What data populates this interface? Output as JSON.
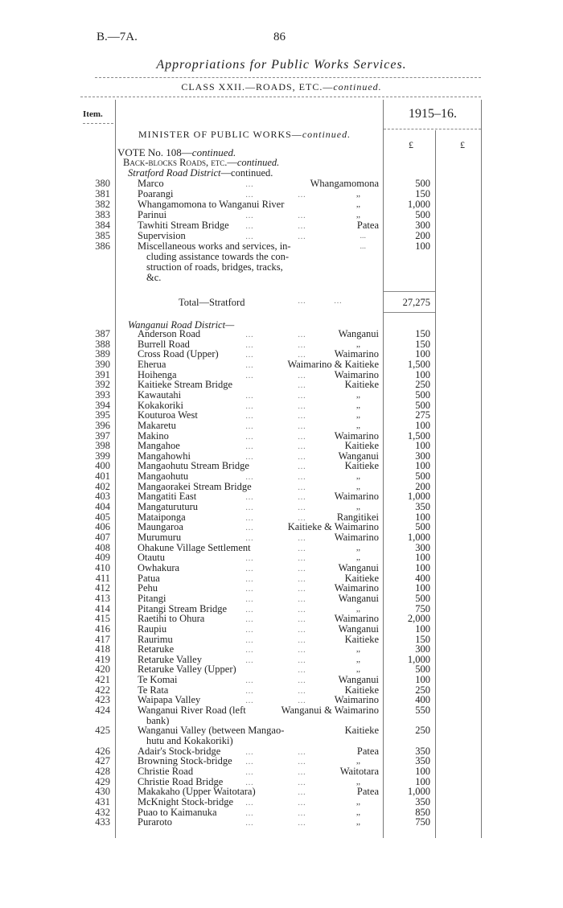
{
  "header": {
    "ref": "B.—7A.",
    "page_number": "86",
    "title": "Appropriations for Public Works Services.",
    "class_line": "CLASS XXII.—ROADS, ETC.—",
    "class_line_cont": "continued."
  },
  "table": {
    "item_header": "Item.",
    "year_header": "1915–16.",
    "currency_1": "£",
    "currency_2": "£",
    "minister": "MINISTER OF PUBLIC WORKS—",
    "minister_cont": "continued.",
    "vote": "VOTE No. 108—",
    "vote_cont": "continued.",
    "backblocks": "Back-blocks Roads, etc.—",
    "backblocks_cont": "continued.",
    "stratford_heading": "Stratford Road District",
    "stratford_cont": "—continued.",
    "stratford_rows": [
      {
        "item": "380",
        "name": [
          "Marco"
        ],
        "district": "Whangamomona",
        "amount": "500"
      },
      {
        "item": "381",
        "name": [
          "Poarangi"
        ],
        "district": ",,",
        "amount": "150"
      },
      {
        "item": "382",
        "name": [
          "Whangamomona to Wanganui River"
        ],
        "district": ",,",
        "amount": "1,000"
      },
      {
        "item": "383",
        "name": [
          "Parinui"
        ],
        "district": ",,",
        "amount": "500"
      },
      {
        "item": "384",
        "name": [
          "Tawhiti Stream Bridge"
        ],
        "district": "Patea",
        "amount": "300"
      },
      {
        "item": "385",
        "name": [
          "Supervision"
        ],
        "district": "...",
        "amount": "200"
      },
      {
        "item": "386",
        "name": [
          "Miscellaneous works and services, in-",
          "cluding assistance towards the con-",
          "struction of roads, bridges, tracks,",
          "&c."
        ],
        "district": "...",
        "amount": "100"
      }
    ],
    "stratford_total_label": "Total—Stratford",
    "stratford_total": "27,275",
    "wanganui_heading": "Wanganui Road District—",
    "wanganui_rows": [
      {
        "item": "387",
        "name": [
          "Anderson Road"
        ],
        "district": "Wanganui",
        "amount": "150"
      },
      {
        "item": "388",
        "name": [
          "Burrell Road"
        ],
        "district": ",,",
        "amount": "150"
      },
      {
        "item": "389",
        "name": [
          "Cross Road (Upper)"
        ],
        "district": "Waimarino",
        "amount": "100"
      },
      {
        "item": "390",
        "name": [
          "Eherua"
        ],
        "district": "Waimarino & Kaitieke",
        "amount": "1,500"
      },
      {
        "item": "391",
        "name": [
          "Hoihenga"
        ],
        "district": "Waimarino",
        "amount": "100"
      },
      {
        "item": "392",
        "name": [
          "Kaitieke Stream Bridge"
        ],
        "district": "Kaitieke",
        "amount": "250"
      },
      {
        "item": "393",
        "name": [
          "Kawautahi"
        ],
        "district": ",,",
        "amount": "500"
      },
      {
        "item": "394",
        "name": [
          "Kokakoriki"
        ],
        "district": ",,",
        "amount": "500"
      },
      {
        "item": "395",
        "name": [
          "Kouturoa West"
        ],
        "district": ",,",
        "amount": "275"
      },
      {
        "item": "396",
        "name": [
          "Makaretu"
        ],
        "district": ",,",
        "amount": "100"
      },
      {
        "item": "397",
        "name": [
          "Makino"
        ],
        "district": "Waimarino",
        "amount": "1,500"
      },
      {
        "item": "398",
        "name": [
          "Mangahoe"
        ],
        "district": "Kaitieke",
        "amount": "100"
      },
      {
        "item": "399",
        "name": [
          "Mangahowhi"
        ],
        "district": "Wanganui",
        "amount": "300"
      },
      {
        "item": "400",
        "name": [
          "Mangaohutu Stream Bridge"
        ],
        "district": "Kaitieke",
        "amount": "100"
      },
      {
        "item": "401",
        "name": [
          "Mangaohutu"
        ],
        "district": ",,",
        "amount": "500"
      },
      {
        "item": "402",
        "name": [
          "Mangaorakei Stream Bridge"
        ],
        "district": ",,",
        "amount": "200"
      },
      {
        "item": "403",
        "name": [
          "Mangatiti East"
        ],
        "district": "Waimarino",
        "amount": "1,000"
      },
      {
        "item": "404",
        "name": [
          "Mangaturuturu"
        ],
        "district": ",,",
        "amount": "350"
      },
      {
        "item": "405",
        "name": [
          "Mataiponga"
        ],
        "district": "Rangitikei",
        "amount": "100"
      },
      {
        "item": "406",
        "name": [
          "Maungaroa"
        ],
        "district": "Kaitieke & Waimarino",
        "amount": "500"
      },
      {
        "item": "407",
        "name": [
          "Murumuru"
        ],
        "district": "Waimarino",
        "amount": "1,000"
      },
      {
        "item": "408",
        "name": [
          "Ohakune Village Settlement"
        ],
        "district": ",,",
        "amount": "300"
      },
      {
        "item": "409",
        "name": [
          "Otautu"
        ],
        "district": ",,",
        "amount": "100"
      },
      {
        "item": "410",
        "name": [
          "Owhakura"
        ],
        "district": "Wanganui",
        "amount": "100"
      },
      {
        "item": "411",
        "name": [
          "Patua"
        ],
        "district": "Kaitieke",
        "amount": "400"
      },
      {
        "item": "412",
        "name": [
          "Pehu"
        ],
        "district": "Waimarino",
        "amount": "100"
      },
      {
        "item": "413",
        "name": [
          "Pitangi"
        ],
        "district": "Wanganui",
        "amount": "500"
      },
      {
        "item": "414",
        "name": [
          "Pitangi Stream Bridge"
        ],
        "district": ",,",
        "amount": "750"
      },
      {
        "item": "415",
        "name": [
          "Raetihi to Ohura"
        ],
        "district": "Waimarino",
        "amount": "2,000"
      },
      {
        "item": "416",
        "name": [
          "Raupiu"
        ],
        "district": "Wanganui",
        "amount": "100"
      },
      {
        "item": "417",
        "name": [
          "Raurimu"
        ],
        "district": "Kaitieke",
        "amount": "150"
      },
      {
        "item": "418",
        "name": [
          "Retaruke"
        ],
        "district": ",,",
        "amount": "300"
      },
      {
        "item": "419",
        "name": [
          "Retaruke Valley"
        ],
        "district": ",,",
        "amount": "1,000"
      },
      {
        "item": "420",
        "name": [
          "Retaruke Valley (Upper)"
        ],
        "district": ",,",
        "amount": "500"
      },
      {
        "item": "421",
        "name": [
          "Te Komai"
        ],
        "district": "Wanganui",
        "amount": "100"
      },
      {
        "item": "422",
        "name": [
          "Te Rata"
        ],
        "district": "Kaitieke",
        "amount": "250"
      },
      {
        "item": "423",
        "name": [
          "Waipapa Valley"
        ],
        "district": "Waimarino",
        "amount": "400"
      },
      {
        "item": "424",
        "name": [
          "Wanganui River Road (left",
          "bank)"
        ],
        "district": "Wanganui & Waimarino",
        "amount": "550"
      },
      {
        "item": "425",
        "name": [
          "Wanganui Valley (between Mangao-",
          "hutu and Kokakoriki)"
        ],
        "district": "Kaitieke",
        "amount": "250"
      },
      {
        "item": "426",
        "name": [
          "Adair's Stock-bridge"
        ],
        "district": "Patea",
        "amount": "350"
      },
      {
        "item": "427",
        "name": [
          "Browning Stock-bridge"
        ],
        "district": ",,",
        "amount": "350"
      },
      {
        "item": "428",
        "name": [
          "Christie Road"
        ],
        "district": "Waitotara",
        "amount": "100"
      },
      {
        "item": "429",
        "name": [
          "Christie Road Bridge"
        ],
        "district": ",,",
        "amount": "100"
      },
      {
        "item": "430",
        "name": [
          "Makakaho (Upper Waitotara)"
        ],
        "district": "Patea",
        "amount": "1,000"
      },
      {
        "item": "431",
        "name": [
          "McKnight Stock-bridge"
        ],
        "district": ",,",
        "amount": "350"
      },
      {
        "item": "432",
        "name": [
          "Puao to Kaimanuka"
        ],
        "district": ",,",
        "amount": "850"
      },
      {
        "item": "433",
        "name": [
          "Puraroto"
        ],
        "district": ",,",
        "amount": "750"
      }
    ]
  }
}
